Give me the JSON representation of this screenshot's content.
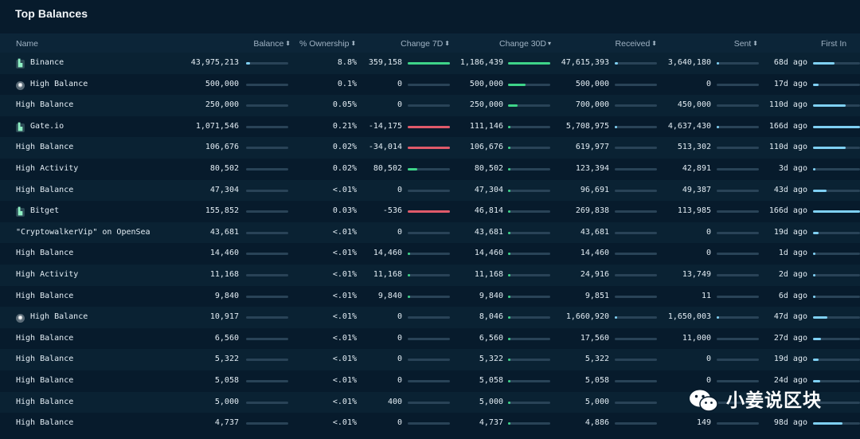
{
  "title": "Top Balances",
  "headers": {
    "name": "Name",
    "balance": "Balance",
    "ownership": "% Ownership",
    "change7d": "Change 7D",
    "change30d": "Change 30D",
    "received": "Received",
    "sent": "Sent",
    "first_in": "First In"
  },
  "colors": {
    "green": "#3ed489",
    "red": "#e05a6a",
    "blue": "#7fd0f3",
    "track": "#294357"
  },
  "rows": [
    {
      "icon": "exchange-icon",
      "name": "Binance",
      "balance": "43,975,213",
      "bal_pct": 0.1,
      "ownership": "8.8%",
      "change7d": "359,158",
      "c7_pct": 1.0,
      "c7_color": "green",
      "change30d": "1,186,439",
      "c30_pct": 1.0,
      "received": "47,615,393",
      "rec_pct": 0.08,
      "sent": "3,640,180",
      "sent_pct": 0.02,
      "first_in": "68d ago",
      "fi_pct": 0.45
    },
    {
      "icon": "entity-icon",
      "name": "High Balance",
      "balance": "500,000",
      "bal_pct": 0.0,
      "ownership": "0.1%",
      "change7d": "0",
      "c7_pct": 0,
      "c7_color": "green",
      "change30d": "500,000",
      "c30_pct": 0.42,
      "received": "500,000",
      "rec_pct": 0,
      "sent": "0",
      "sent_pct": 0,
      "first_in": "17d ago",
      "fi_pct": 0.12
    },
    {
      "icon": "",
      "name": "High Balance",
      "balance": "250,000",
      "bal_pct": 0.0,
      "ownership": "0.05%",
      "change7d": "0",
      "c7_pct": 0,
      "c7_color": "green",
      "change30d": "250,000",
      "c30_pct": 0.22,
      "received": "700,000",
      "rec_pct": 0,
      "sent": "450,000",
      "sent_pct": 0,
      "first_in": "110d ago",
      "fi_pct": 0.7
    },
    {
      "icon": "exchange-icon",
      "name": "Gate.io",
      "balance": "1,071,546",
      "bal_pct": 0.0,
      "ownership": "0.21%",
      "change7d": "-14,175",
      "c7_pct": 1.0,
      "c7_color": "red",
      "change30d": "111,146",
      "c30_pct": 0.05,
      "received": "5,708,975",
      "rec_pct": 0.01,
      "sent": "4,637,430",
      "sent_pct": 0.03,
      "first_in": "166d ago",
      "fi_pct": 1.0
    },
    {
      "icon": "",
      "name": "High Balance",
      "balance": "106,676",
      "bal_pct": 0.0,
      "ownership": "0.02%",
      "change7d": "-34,014",
      "c7_pct": 1.0,
      "c7_color": "red",
      "change30d": "106,676",
      "c30_pct": 0.05,
      "received": "619,977",
      "rec_pct": 0,
      "sent": "513,302",
      "sent_pct": 0,
      "first_in": "110d ago",
      "fi_pct": 0.7
    },
    {
      "icon": "",
      "name": "High Activity",
      "balance": "80,502",
      "bal_pct": 0.0,
      "ownership": "0.02%",
      "change7d": "80,502",
      "c7_pct": 0.22,
      "c7_color": "green",
      "change30d": "80,502",
      "c30_pct": 0.03,
      "received": "123,394",
      "rec_pct": 0,
      "sent": "42,891",
      "sent_pct": 0,
      "first_in": "3d ago",
      "fi_pct": 0.02
    },
    {
      "icon": "",
      "name": "High Balance",
      "balance": "47,304",
      "bal_pct": 0.0,
      "ownership": "<.01%",
      "change7d": "0",
      "c7_pct": 0,
      "c7_color": "green",
      "change30d": "47,304",
      "c30_pct": 0.03,
      "received": "96,691",
      "rec_pct": 0,
      "sent": "49,387",
      "sent_pct": 0,
      "first_in": "43d ago",
      "fi_pct": 0.28
    },
    {
      "icon": "exchange-icon",
      "name": "Bitget",
      "balance": "155,852",
      "bal_pct": 0.0,
      "ownership": "0.03%",
      "change7d": "-536",
      "c7_pct": 1.0,
      "c7_color": "red",
      "change30d": "46,814",
      "c30_pct": 0.03,
      "received": "269,838",
      "rec_pct": 0,
      "sent": "113,985",
      "sent_pct": 0,
      "first_in": "166d ago",
      "fi_pct": 1.0
    },
    {
      "icon": "",
      "name": "\"CryptowalkerVip\" on OpenSea",
      "balance": "43,681",
      "bal_pct": 0.0,
      "ownership": "<.01%",
      "change7d": "0",
      "c7_pct": 0,
      "c7_color": "green",
      "change30d": "43,681",
      "c30_pct": 0.03,
      "received": "43,681",
      "rec_pct": 0,
      "sent": "0",
      "sent_pct": 0,
      "first_in": "19d ago",
      "fi_pct": 0.12
    },
    {
      "icon": "",
      "name": "High Balance",
      "balance": "14,460",
      "bal_pct": 0.0,
      "ownership": "<.01%",
      "change7d": "14,460",
      "c7_pct": 0.04,
      "c7_color": "green",
      "change30d": "14,460",
      "c30_pct": 0.01,
      "received": "14,460",
      "rec_pct": 0,
      "sent": "0",
      "sent_pct": 0,
      "first_in": "1d ago",
      "fi_pct": 0.01
    },
    {
      "icon": "",
      "name": "High Activity",
      "balance": "11,168",
      "bal_pct": 0.0,
      "ownership": "<.01%",
      "change7d": "11,168",
      "c7_pct": 0.03,
      "c7_color": "green",
      "change30d": "11,168",
      "c30_pct": 0.01,
      "received": "24,916",
      "rec_pct": 0,
      "sent": "13,749",
      "sent_pct": 0,
      "first_in": "2d ago",
      "fi_pct": 0.01
    },
    {
      "icon": "",
      "name": "High Balance",
      "balance": "9,840",
      "bal_pct": 0.0,
      "ownership": "<.01%",
      "change7d": "9,840",
      "c7_pct": 0.03,
      "c7_color": "green",
      "change30d": "9,840",
      "c30_pct": 0.01,
      "received": "9,851",
      "rec_pct": 0,
      "sent": "11",
      "sent_pct": 0,
      "first_in": "6d ago",
      "fi_pct": 0.04
    },
    {
      "icon": "entity-icon",
      "name": "High Balance",
      "balance": "10,917",
      "bal_pct": 0.0,
      "ownership": "<.01%",
      "change7d": "0",
      "c7_pct": 0,
      "c7_color": "green",
      "change30d": "8,046",
      "c30_pct": 0.01,
      "received": "1,660,920",
      "rec_pct": 0.01,
      "sent": "1,650,003",
      "sent_pct": 0.01,
      "first_in": "47d ago",
      "fi_pct": 0.3
    },
    {
      "icon": "",
      "name": "High Balance",
      "balance": "6,560",
      "bal_pct": 0.0,
      "ownership": "<.01%",
      "change7d": "0",
      "c7_pct": 0,
      "c7_color": "green",
      "change30d": "6,560",
      "c30_pct": 0.01,
      "received": "17,560",
      "rec_pct": 0,
      "sent": "11,000",
      "sent_pct": 0,
      "first_in": "27d ago",
      "fi_pct": 0.17
    },
    {
      "icon": "",
      "name": "High Balance",
      "balance": "5,322",
      "bal_pct": 0.0,
      "ownership": "<.01%",
      "change7d": "0",
      "c7_pct": 0,
      "c7_color": "green",
      "change30d": "5,322",
      "c30_pct": 0.01,
      "received": "5,322",
      "rec_pct": 0,
      "sent": "0",
      "sent_pct": 0,
      "first_in": "19d ago",
      "fi_pct": 0.12
    },
    {
      "icon": "",
      "name": "High Balance",
      "balance": "5,058",
      "bal_pct": 0.0,
      "ownership": "<.01%",
      "change7d": "0",
      "c7_pct": 0,
      "c7_color": "green",
      "change30d": "5,058",
      "c30_pct": 0.01,
      "received": "5,058",
      "rec_pct": 0,
      "sent": "0",
      "sent_pct": 0,
      "first_in": "24d ago",
      "fi_pct": 0.15
    },
    {
      "icon": "",
      "name": "High Balance",
      "balance": "5,000",
      "bal_pct": 0.0,
      "ownership": "<.01%",
      "change7d": "400",
      "c7_pct": 0,
      "c7_color": "green",
      "change30d": "5,000",
      "c30_pct": 0.01,
      "received": "5,000",
      "rec_pct": 0,
      "sent": "",
      "sent_pct": 0,
      "first_in": "",
      "fi_pct": 0
    },
    {
      "icon": "",
      "name": "High Balance",
      "balance": "4,737",
      "bal_pct": 0.0,
      "ownership": "<.01%",
      "change7d": "0",
      "c7_pct": 0,
      "c7_color": "green",
      "change30d": "4,737",
      "c30_pct": 0.01,
      "received": "4,886",
      "rec_pct": 0,
      "sent": "149",
      "sent_pct": 0,
      "first_in": "98d ago",
      "fi_pct": 0.62
    }
  ],
  "watermark": {
    "text": "小姜说区块",
    "icon": "wechat-icon"
  }
}
